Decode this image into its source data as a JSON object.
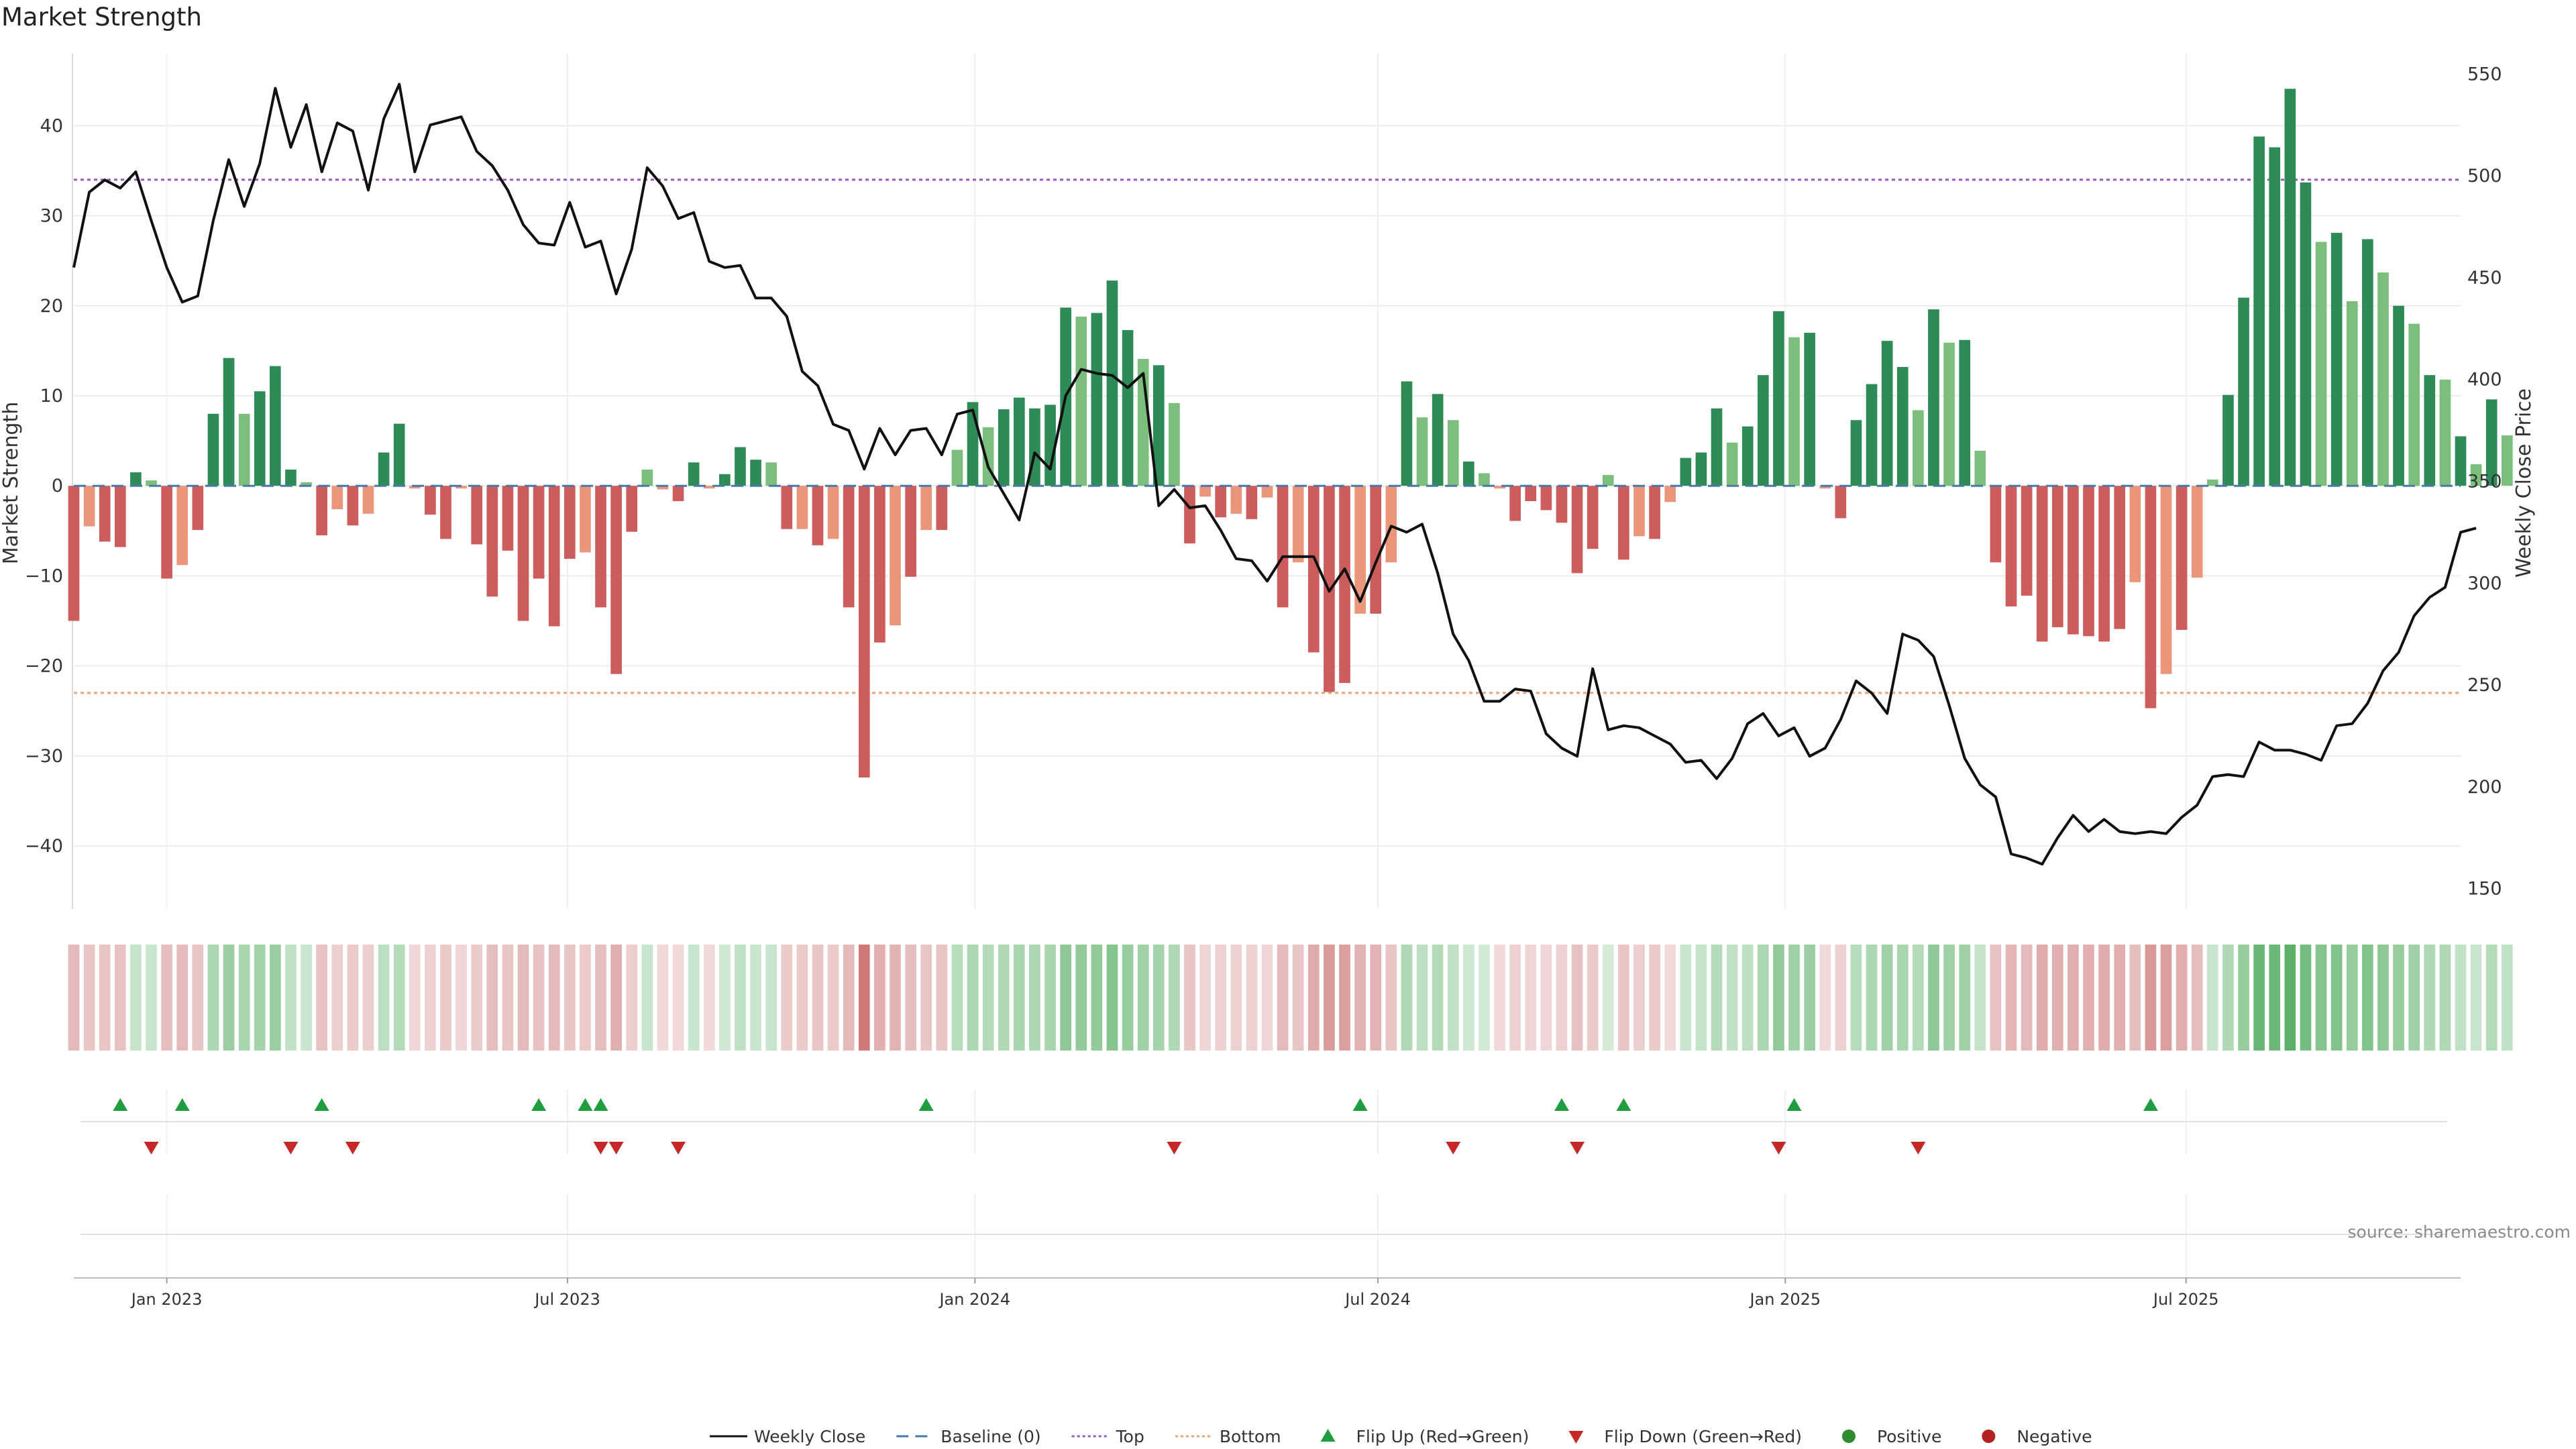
{
  "title": "Market Strength",
  "source": "source: sharemaestro.com",
  "colors": {
    "pos_strong": "#2e8b57",
    "pos_light": "#7cbf7c",
    "neg_strong": "#cd5c5c",
    "neg_light": "#e9967a",
    "top": "#9b59b6",
    "bottom": "#f0a070",
    "baseline": "#4a79a5",
    "close": "#111111",
    "flip_up": "#1e9e3e",
    "flip_down": "#c62828",
    "positive": "#2e8b2e",
    "negative": "#b22222"
  },
  "legend": [
    {
      "label": "Weekly Close",
      "kind": "line",
      "style": "solid",
      "color": "#111111",
      "icon": "solid-line-icon"
    },
    {
      "label": "Baseline (0)",
      "kind": "line",
      "style": "dash",
      "color": "#4a79a5",
      "icon": "dashed-line-icon"
    },
    {
      "label": "Top",
      "kind": "line",
      "style": "dot",
      "color": "#9b59b6",
      "icon": "dotted-line-icon"
    },
    {
      "label": "Bottom",
      "kind": "line",
      "style": "dot",
      "color": "#f0a070",
      "icon": "dotted-line-icon"
    },
    {
      "label": "Flip Up (Red→Green)",
      "kind": "tri-up",
      "color": "#1e9e3e",
      "icon": "triangle-up-icon"
    },
    {
      "label": "Flip Down (Green→Red)",
      "kind": "tri-down",
      "color": "#c62828",
      "icon": "triangle-down-icon"
    },
    {
      "label": "Positive",
      "kind": "dot",
      "color": "#2e8b2e",
      "icon": "circle-icon"
    },
    {
      "label": "Negative",
      "kind": "dot",
      "color": "#b22222",
      "icon": "circle-icon"
    }
  ],
  "chart_data": {
    "type": "bar",
    "title": "Market Strength",
    "ylabel_left": "Market Strength",
    "ylabel_right": "Weekly Close Price",
    "x_start": "2022-11-20",
    "x_step_days": 7,
    "x_range": [
      "2022-11-20",
      "2025-11-02"
    ],
    "ylim_left": [
      -47,
      48
    ],
    "ylim_right": [
      140,
      560
    ],
    "yticks_left": [
      -40,
      -30,
      -20,
      -10,
      0,
      10,
      20,
      30,
      40
    ],
    "yticks_right": [
      150,
      200,
      250,
      300,
      350,
      400,
      450,
      500,
      550
    ],
    "xticks": [
      {
        "date": "2023-01-01",
        "label": "Jan 2023"
      },
      {
        "date": "2023-07-01",
        "label": "Jul 2023"
      },
      {
        "date": "2024-01-01",
        "label": "Jan 2024"
      },
      {
        "date": "2024-07-01",
        "label": "Jul 2024"
      },
      {
        "date": "2025-01-01",
        "label": "Jan 2025"
      },
      {
        "date": "2025-07-01",
        "label": "Jul 2025"
      }
    ],
    "top_threshold": 34,
    "bottom_threshold": -23,
    "baseline": 0,
    "grid": true,
    "legend_position": "bottom",
    "strength": [
      -15,
      -4.5,
      -6.2,
      -6.8,
      1.5,
      0.6,
      -10.3,
      -8.8,
      -4.9,
      8,
      14.2,
      8,
      10.5,
      13.3,
      1.8,
      0.4,
      -5.5,
      -2.6,
      -4.4,
      -3.1,
      3.7,
      6.9,
      -0.3,
      -3.2,
      -5.9,
      -0.3,
      -6.5,
      -12.3,
      -7.2,
      -15,
      -10.3,
      -15.6,
      -8.1,
      -7.4,
      -13.5,
      -20.9,
      -5.1,
      1.8,
      -0.4,
      -1.7,
      2.6,
      -0.3,
      1.3,
      4.3,
      2.9,
      2.6,
      -4.8,
      -4.8,
      -6.6,
      -5.9,
      -13.5,
      -32.4,
      -17.4,
      -15.5,
      -10.1,
      -4.9,
      -4.9,
      4,
      9.3,
      6.5,
      8.5,
      9.8,
      8.6,
      9,
      19.8,
      18.8,
      19.2,
      22.8,
      17.3,
      14.1,
      13.4,
      9.2,
      -6.4,
      -1.2,
      -3.5,
      -3.1,
      -3.7,
      -1.3,
      -13.5,
      -8.5,
      -18.5,
      -22.9,
      -21.9,
      -14.2,
      -14.2,
      -8.5,
      11.6,
      7.6,
      10.2,
      7.3,
      2.7,
      1.4,
      -0.3,
      -3.9,
      -1.7,
      -2.7,
      -4.1,
      -9.7,
      -7,
      1.2,
      -8.2,
      -5.6,
      -5.9,
      -1.8,
      3.1,
      3.7,
      8.6,
      4.8,
      6.6,
      12.3,
      19.4,
      16.5,
      17,
      -0.3,
      -3.6,
      7.3,
      11.3,
      16.1,
      13.2,
      8.4,
      19.6,
      15.9,
      16.2,
      3.9,
      -8.5,
      -13.4,
      -12.2,
      -17.3,
      -15.7,
      -16.5,
      -16.7,
      -17.3,
      -15.9,
      -10.7,
      -24.7,
      -20.9,
      -16,
      -10.2,
      0.7,
      10.1,
      20.9,
      38.8,
      37.6,
      44.1,
      33.7,
      27.1,
      28.1,
      20.5,
      27.4,
      23.7,
      20,
      18,
      12.3,
      11.8,
      5.5,
      2.4,
      9.6,
      5.6
    ],
    "weekly_close": [
      455,
      492,
      498,
      494,
      502,
      478,
      455,
      438,
      441,
      478,
      508,
      485,
      506,
      543,
      514,
      535,
      502,
      526,
      522,
      493,
      528,
      545,
      502,
      525,
      527,
      529,
      512,
      505,
      493,
      476,
      467,
      466,
      487,
      465,
      468,
      442,
      464,
      504,
      495,
      479,
      482,
      458,
      455,
      456,
      440,
      440,
      431,
      404,
      397,
      378,
      375,
      356,
      376,
      363,
      375,
      376,
      363,
      383,
      385,
      357,
      344,
      331,
      364,
      356,
      392,
      405,
      403,
      402,
      396,
      403,
      338,
      346,
      337,
      338,
      326,
      312,
      311,
      301,
      313,
      313,
      313,
      296,
      307,
      291,
      310,
      328,
      325,
      329,
      305,
      275,
      262,
      242,
      242,
      248,
      247,
      226,
      219,
      215,
      258,
      228,
      230,
      229,
      225,
      221,
      212,
      213,
      204,
      214,
      231,
      236,
      225,
      229,
      215,
      219,
      233,
      252,
      246,
      236,
      275,
      272,
      264,
      240,
      214,
      201,
      195,
      167,
      165,
      162,
      175,
      186,
      178,
      184,
      178,
      177,
      178,
      177,
      185,
      191,
      205,
      206,
      205,
      222,
      218,
      218,
      216,
      213,
      230,
      231,
      241,
      257,
      266,
      284,
      293,
      298,
      325,
      327
    ],
    "shading_levels": [
      0.36,
      0.3,
      0.3,
      0.32,
      0.28,
      0.26,
      0.34,
      0.36,
      0.3,
      0.4,
      0.48,
      0.42,
      0.44,
      0.48,
      0.3,
      0.26,
      0.32,
      0.26,
      0.28,
      0.26,
      0.32,
      0.36,
      0.22,
      0.24,
      0.28,
      0.22,
      0.28,
      0.34,
      0.3,
      0.36,
      0.32,
      0.36,
      0.3,
      0.28,
      0.34,
      0.42,
      0.26,
      0.26,
      0.2,
      0.2,
      0.26,
      0.2,
      0.24,
      0.3,
      0.26,
      0.26,
      0.28,
      0.28,
      0.3,
      0.28,
      0.36,
      0.7,
      0.42,
      0.4,
      0.34,
      0.3,
      0.3,
      0.34,
      0.4,
      0.36,
      0.38,
      0.42,
      0.4,
      0.42,
      0.54,
      0.52,
      0.52,
      0.58,
      0.5,
      0.46,
      0.44,
      0.38,
      0.3,
      0.22,
      0.24,
      0.24,
      0.24,
      0.22,
      0.36,
      0.3,
      0.44,
      0.52,
      0.5,
      0.4,
      0.4,
      0.3,
      0.38,
      0.32,
      0.36,
      0.3,
      0.24,
      0.22,
      0.2,
      0.24,
      0.22,
      0.22,
      0.24,
      0.32,
      0.28,
      0.2,
      0.3,
      0.26,
      0.28,
      0.2,
      0.26,
      0.28,
      0.36,
      0.3,
      0.32,
      0.4,
      0.52,
      0.46,
      0.48,
      0.2,
      0.24,
      0.34,
      0.4,
      0.46,
      0.42,
      0.36,
      0.54,
      0.46,
      0.46,
      0.28,
      0.32,
      0.38,
      0.36,
      0.44,
      0.42,
      0.42,
      0.42,
      0.44,
      0.42,
      0.34,
      0.54,
      0.5,
      0.42,
      0.34,
      0.26,
      0.38,
      0.5,
      0.72,
      0.7,
      0.78,
      0.66,
      0.58,
      0.6,
      0.5,
      0.6,
      0.54,
      0.5,
      0.46,
      0.38,
      0.38,
      0.3,
      0.26,
      0.36,
      0.3
    ],
    "flip_up_dates": [
      "2022-12-11",
      "2023-01-08",
      "2023-03-12",
      "2023-06-18",
      "2023-07-09",
      "2023-07-16",
      "2023-12-10",
      "2024-06-23",
      "2024-09-22",
      "2024-10-20",
      "2025-01-05",
      "2025-06-15"
    ],
    "flip_down_dates": [
      "2022-12-25",
      "2023-02-26",
      "2023-03-26",
      "2023-07-16",
      "2023-07-23",
      "2023-08-20",
      "2024-03-31",
      "2024-08-04",
      "2024-09-29",
      "2024-12-29",
      "2025-03-02"
    ]
  }
}
